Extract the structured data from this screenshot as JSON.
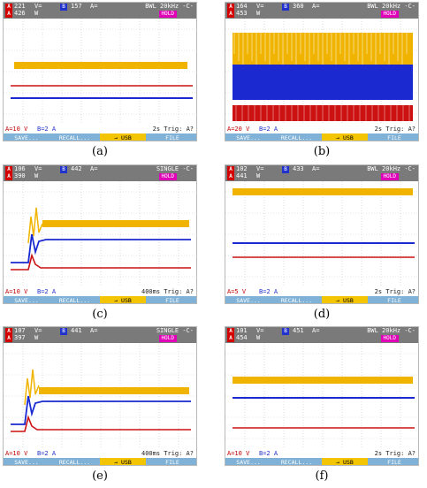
{
  "colors": {
    "yellow": "#f0b400",
    "red": "#cc1111",
    "blue": "#1a2ad0",
    "header": "#7a7a7a",
    "hold": "#e000b8",
    "keys": "#7fb2d6",
    "usb": "#f3c400"
  },
  "panels": [
    {
      "caption": "(a)",
      "v1": "221",
      "v2": "426",
      "u1": "V=",
      "u2": "W",
      "v3": "157",
      "u3": "A=",
      "mode": "BWL 20kHz -C-",
      "hold": "HOLD",
      "fa": "A=10 V",
      "fb": "B=2 A",
      "fr": "2s Trig: A?",
      "keys": [
        "SAVE...",
        "RECALL...",
        "→ USB",
        "FILE OPTIONS..."
      ]
    },
    {
      "caption": "(b)",
      "v1": "164",
      "v2": "453",
      "u1": "V=",
      "u2": "W",
      "v3": "360",
      "u3": "A=",
      "mode": "BWL 20kHz -C-",
      "hold": "HOLD",
      "fa": "A=20 V",
      "fb": "B=2 A",
      "fr": "2s Trig: A?",
      "keys": [
        "SAVE...",
        "RECALL...",
        "→ USB",
        "FILE OPTIONS..."
      ]
    },
    {
      "caption": "(c)",
      "v1": "106",
      "v2": "390",
      "u1": "V=",
      "u2": "W",
      "v3": "442",
      "u3": "A=",
      "mode": "SINGLE -C-",
      "hold": "HOLD",
      "fa": "A=10 V",
      "fb": "B=2 A",
      "fr": "400ms Trig: A?",
      "keys": [
        "SAVE...",
        "RECALL...",
        "→ USB",
        "FILE OPTIONS..."
      ]
    },
    {
      "caption": "(d)",
      "v1": "102",
      "v2": "441",
      "u1": "V=",
      "u2": "W",
      "v3": "433",
      "u3": "A=",
      "mode": "BWL 20kHz -C-",
      "hold": "HOLD",
      "fa": "A=5 V",
      "fb": "B=2 A",
      "fr": "2s Trig: A?",
      "keys": [
        "SAVE...",
        "RECALL...",
        "→ USB",
        "FILE OPTIONS..."
      ]
    },
    {
      "caption": "(e)",
      "v1": "107",
      "v2": "397",
      "u1": "V=",
      "u2": "W",
      "v3": "441",
      "u3": "A=",
      "mode": "SINGLE -C-",
      "hold": "HOLD",
      "fa": "A=10 V",
      "fb": "B=2 A",
      "fr": "400ms Trig: A?",
      "keys": [
        "SAVE...",
        "RECALL...",
        "→ USB",
        "FILE OPTIONS..."
      ]
    },
    {
      "caption": "(f)",
      "v1": "101",
      "v2": "454",
      "u1": "V=",
      "u2": "W",
      "v3": "451",
      "u3": "A=",
      "mode": "BWL 20kHz -C-",
      "hold": "HOLD",
      "fa": "A=10 V",
      "fb": "B=2 A",
      "fr": "2s Trig: A?",
      "keys": [
        "SAVE...",
        "RECALL...",
        "→ USB",
        "FILE OPTIONS..."
      ]
    }
  ]
}
